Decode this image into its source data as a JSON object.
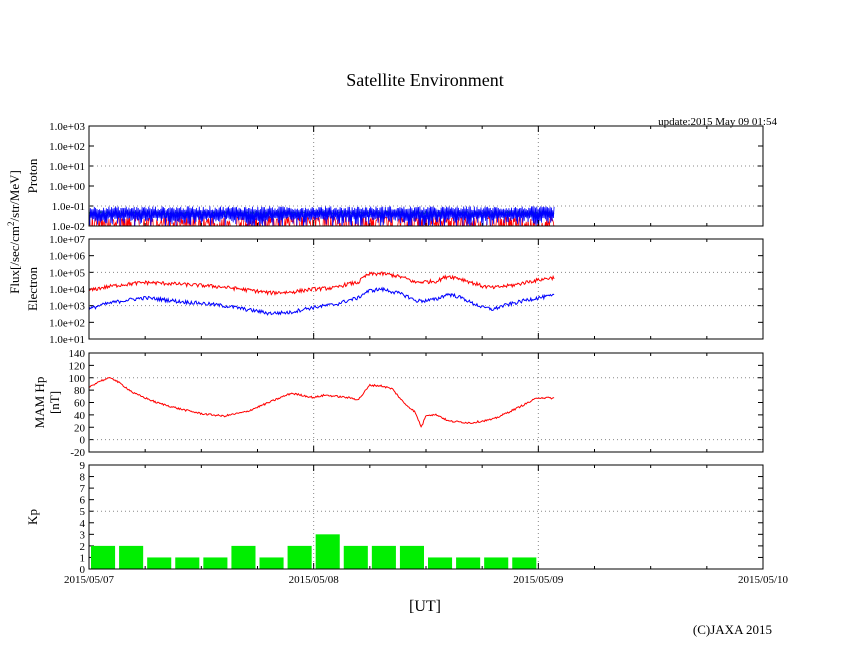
{
  "title": "Satellite Environment",
  "update": "update:2015 May 09 01:54",
  "copyright": "(C)JAXA 2015",
  "xlabel": "[UT]",
  "flux_ylabel_left": "Flux[/sec/cm",
  "flux_ylabel_sup": "2",
  "flux_ylabel_right": "/str/MeV]",
  "chart_data": [
    {
      "type": "line",
      "name": "proton",
      "ylabel": "Proton",
      "yscale": "log",
      "ylim": [
        0.01,
        1000
      ],
      "yticks": [
        "1.0e-02",
        "1.0e-01",
        "1.0e+00",
        "1.0e+01",
        "1.0e+02",
        "1.0e+03"
      ],
      "xlim_days": [
        0,
        3
      ],
      "data_end_day": 2.07,
      "series": [
        {
          "name": "proton-blue",
          "color": "#0000ff",
          "approx_level": 0.06,
          "noisy_floor": 0.01
        },
        {
          "name": "proton-green",
          "color": "#00c000",
          "approx_level": 0.04
        },
        {
          "name": "proton-red",
          "color": "#ff0000",
          "approx_level": 0.02
        }
      ]
    },
    {
      "type": "line",
      "name": "electron",
      "ylabel": "Electron",
      "yscale": "log",
      "ylim": [
        10,
        10000000
      ],
      "yticks": [
        "1.0e+01",
        "1.0e+02",
        "1.0e+03",
        "1.0e+04",
        "1.0e+05",
        "1.0e+06",
        "1.0e+07"
      ],
      "series": [
        {
          "name": "electron-red",
          "color": "#ff0000",
          "x": [
            0,
            0.1,
            0.25,
            0.4,
            0.55,
            0.7,
            0.8,
            0.9,
            1.0,
            1.1,
            1.15,
            1.2,
            1.25,
            1.3,
            1.35,
            1.45,
            1.5,
            1.55,
            1.6,
            1.7,
            1.75,
            1.8,
            1.9,
            2.0,
            2.07
          ],
          "y": [
            8000,
            15000,
            25000,
            20000,
            15000,
            9000,
            6000,
            6500,
            10000,
            12000,
            20000,
            25000,
            80000,
            85000,
            70000,
            25000,
            28000,
            30000,
            60000,
            25000,
            15000,
            12000,
            18000,
            35000,
            50000
          ]
        },
        {
          "name": "electron-blue",
          "color": "#0000ff",
          "x": [
            0,
            0.1,
            0.25,
            0.4,
            0.55,
            0.7,
            0.8,
            0.9,
            1.0,
            1.1,
            1.15,
            1.2,
            1.25,
            1.3,
            1.35,
            1.45,
            1.5,
            1.55,
            1.6,
            1.7,
            1.75,
            1.8,
            1.9,
            2.0,
            2.07
          ],
          "y": [
            600,
            1500,
            3000,
            1800,
            1200,
            600,
            350,
            400,
            800,
            1200,
            2000,
            3000,
            8000,
            10000,
            7000,
            2000,
            2000,
            2500,
            5000,
            1500,
            800,
            600,
            1500,
            3000,
            4000
          ]
        }
      ]
    },
    {
      "type": "line",
      "name": "mam-hp",
      "ylabel": "MAM Hp",
      "ylabel2": "[nT]",
      "ylim": [
        -20,
        140
      ],
      "yticks": [
        "-20",
        "0",
        "20",
        "40",
        "60",
        "80",
        "100",
        "120",
        "140"
      ],
      "series": [
        {
          "name": "hp-red",
          "color": "#ff0000",
          "x": [
            0,
            0.05,
            0.1,
            0.15,
            0.2,
            0.3,
            0.4,
            0.5,
            0.6,
            0.7,
            0.8,
            0.9,
            1.0,
            1.05,
            1.1,
            1.15,
            1.2,
            1.25,
            1.3,
            1.35,
            1.4,
            1.45,
            1.48,
            1.5,
            1.55,
            1.6,
            1.7,
            1.8,
            1.9,
            2.0,
            2.07
          ],
          "y": [
            85,
            95,
            100,
            88,
            75,
            60,
            50,
            42,
            38,
            45,
            60,
            75,
            68,
            72,
            70,
            68,
            65,
            88,
            87,
            82,
            60,
            45,
            20,
            40,
            40,
            30,
            27,
            33,
            50,
            68,
            67
          ]
        }
      ]
    },
    {
      "type": "bar",
      "name": "kp",
      "ylabel": "Kp",
      "ylim": [
        0,
        9
      ],
      "yticks": [
        "0",
        "1",
        "2",
        "3",
        "4",
        "5",
        "6",
        "7",
        "8",
        "9"
      ],
      "bar_hours": 3,
      "values": [
        2,
        2,
        1,
        1,
        1,
        2,
        1,
        2,
        3,
        2,
        2,
        2,
        1,
        1,
        1,
        1
      ],
      "color": "#00ee00"
    }
  ],
  "x_ticks": [
    "2015/05/07",
    "2015/05/08",
    "2015/05/09",
    "2015/05/10"
  ]
}
